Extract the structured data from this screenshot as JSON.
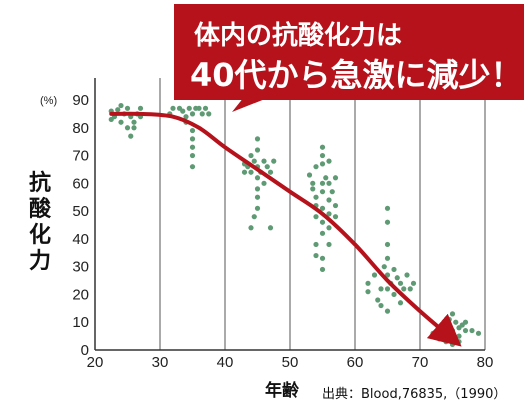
{
  "chart_data": {
    "type": "scatter",
    "title": "",
    "annotation": {
      "line1": "体内の抗酸化力は",
      "line2": "40代から急激に減少！"
    },
    "ylabel": "抗酸化力",
    "yunit": "(%)",
    "xlabel": "年齢",
    "source": "出典：Blood,76835,（1990）",
    "xlim": [
      20,
      80
    ],
    "ylim": [
      0,
      90
    ],
    "xticks": [
      20,
      30,
      40,
      50,
      60,
      70,
      80
    ],
    "yticks": [
      0,
      10,
      20,
      30,
      40,
      50,
      60,
      70,
      80,
      90
    ],
    "grid": "vertical",
    "colors": {
      "points": "#5e9a73",
      "trend": "#b5121b",
      "callout": "#b5121b",
      "axis": "#333333"
    },
    "trend_line": [
      {
        "x": 22.5,
        "y": 85
      },
      {
        "x": 27,
        "y": 85
      },
      {
        "x": 32,
        "y": 84
      },
      {
        "x": 36,
        "y": 80
      },
      {
        "x": 40,
        "y": 73
      },
      {
        "x": 45,
        "y": 65
      },
      {
        "x": 50,
        "y": 57
      },
      {
        "x": 55,
        "y": 49
      },
      {
        "x": 60,
        "y": 38
      },
      {
        "x": 65,
        "y": 25
      },
      {
        "x": 70,
        "y": 14
      },
      {
        "x": 75,
        "y": 4
      }
    ],
    "points": [
      {
        "x": 22.5,
        "y": 86
      },
      {
        "x": 23,
        "y": 84
      },
      {
        "x": 23.5,
        "y": 86.5
      },
      {
        "x": 24,
        "y": 82
      },
      {
        "x": 24.5,
        "y": 85
      },
      {
        "x": 25,
        "y": 80
      },
      {
        "x": 25,
        "y": 87
      },
      {
        "x": 25.5,
        "y": 84
      },
      {
        "x": 25.5,
        "y": 77
      },
      {
        "x": 26,
        "y": 82
      },
      {
        "x": 26.5,
        "y": 85
      },
      {
        "x": 27,
        "y": 84
      },
      {
        "x": 27,
        "y": 87
      },
      {
        "x": 26,
        "y": 80
      },
      {
        "x": 24,
        "y": 88
      },
      {
        "x": 22.5,
        "y": 83
      },
      {
        "x": 32,
        "y": 87
      },
      {
        "x": 33,
        "y": 87
      },
      {
        "x": 33.5,
        "y": 86
      },
      {
        "x": 34,
        "y": 84
      },
      {
        "x": 34,
        "y": 82
      },
      {
        "x": 34.5,
        "y": 87
      },
      {
        "x": 35,
        "y": 85
      },
      {
        "x": 35,
        "y": 79
      },
      {
        "x": 35,
        "y": 76
      },
      {
        "x": 35,
        "y": 73
      },
      {
        "x": 35,
        "y": 70
      },
      {
        "x": 35,
        "y": 66
      },
      {
        "x": 35.5,
        "y": 87
      },
      {
        "x": 36,
        "y": 87
      },
      {
        "x": 36.5,
        "y": 85
      },
      {
        "x": 37,
        "y": 87
      },
      {
        "x": 37.5,
        "y": 85
      },
      {
        "x": 31.5,
        "y": 85
      },
      {
        "x": 43,
        "y": 67
      },
      {
        "x": 43,
        "y": 64
      },
      {
        "x": 43.5,
        "y": 66
      },
      {
        "x": 44,
        "y": 70
      },
      {
        "x": 44,
        "y": 64
      },
      {
        "x": 44,
        "y": 44
      },
      {
        "x": 44.5,
        "y": 68
      },
      {
        "x": 45,
        "y": 76
      },
      {
        "x": 45,
        "y": 72
      },
      {
        "x": 45,
        "y": 66
      },
      {
        "x": 45,
        "y": 62
      },
      {
        "x": 45,
        "y": 58
      },
      {
        "x": 45,
        "y": 55
      },
      {
        "x": 45,
        "y": 51
      },
      {
        "x": 45.5,
        "y": 64
      },
      {
        "x": 46,
        "y": 68
      },
      {
        "x": 46,
        "y": 60
      },
      {
        "x": 46.5,
        "y": 66
      },
      {
        "x": 47,
        "y": 64
      },
      {
        "x": 47,
        "y": 44
      },
      {
        "x": 47.5,
        "y": 68
      },
      {
        "x": 44.5,
        "y": 48
      },
      {
        "x": 53,
        "y": 63
      },
      {
        "x": 53.5,
        "y": 58
      },
      {
        "x": 54,
        "y": 66
      },
      {
        "x": 54,
        "y": 55
      },
      {
        "x": 54,
        "y": 52
      },
      {
        "x": 54,
        "y": 48
      },
      {
        "x": 54,
        "y": 38
      },
      {
        "x": 54,
        "y": 34
      },
      {
        "x": 55,
        "y": 73
      },
      {
        "x": 55,
        "y": 70
      },
      {
        "x": 55,
        "y": 67
      },
      {
        "x": 55,
        "y": 60
      },
      {
        "x": 55,
        "y": 57
      },
      {
        "x": 55,
        "y": 51
      },
      {
        "x": 55,
        "y": 46
      },
      {
        "x": 55,
        "y": 42
      },
      {
        "x": 55,
        "y": 33
      },
      {
        "x": 55,
        "y": 29
      },
      {
        "x": 55.5,
        "y": 62
      },
      {
        "x": 56,
        "y": 68
      },
      {
        "x": 56,
        "y": 60
      },
      {
        "x": 56,
        "y": 54
      },
      {
        "x": 56,
        "y": 49
      },
      {
        "x": 56,
        "y": 44
      },
      {
        "x": 56,
        "y": 38
      },
      {
        "x": 56.5,
        "y": 57
      },
      {
        "x": 57,
        "y": 62
      },
      {
        "x": 57,
        "y": 52
      },
      {
        "x": 57,
        "y": 48
      },
      {
        "x": 53.5,
        "y": 60
      },
      {
        "x": 62,
        "y": 24
      },
      {
        "x": 62,
        "y": 21
      },
      {
        "x": 63,
        "y": 27
      },
      {
        "x": 63.5,
        "y": 18
      },
      {
        "x": 64,
        "y": 22
      },
      {
        "x": 64,
        "y": 16
      },
      {
        "x": 64.5,
        "y": 30
      },
      {
        "x": 65,
        "y": 51
      },
      {
        "x": 65,
        "y": 46
      },
      {
        "x": 65,
        "y": 38
      },
      {
        "x": 65,
        "y": 33
      },
      {
        "x": 65,
        "y": 27
      },
      {
        "x": 65,
        "y": 22
      },
      {
        "x": 65,
        "y": 14
      },
      {
        "x": 65.5,
        "y": 24
      },
      {
        "x": 66,
        "y": 29
      },
      {
        "x": 66,
        "y": 20
      },
      {
        "x": 66.5,
        "y": 26
      },
      {
        "x": 67,
        "y": 24
      },
      {
        "x": 67,
        "y": 17
      },
      {
        "x": 67.5,
        "y": 22
      },
      {
        "x": 68,
        "y": 27
      },
      {
        "x": 68.5,
        "y": 22
      },
      {
        "x": 69,
        "y": 24
      },
      {
        "x": 72,
        "y": 6
      },
      {
        "x": 73,
        "y": 8
      },
      {
        "x": 73.5,
        "y": 5
      },
      {
        "x": 74,
        "y": 9
      },
      {
        "x": 74,
        "y": 3
      },
      {
        "x": 74.5,
        "y": 11
      },
      {
        "x": 75,
        "y": 13
      },
      {
        "x": 75,
        "y": 7
      },
      {
        "x": 75,
        "y": 4
      },
      {
        "x": 75,
        "y": 2
      },
      {
        "x": 75.5,
        "y": 10
      },
      {
        "x": 76,
        "y": 8
      },
      {
        "x": 76,
        "y": 5
      },
      {
        "x": 76,
        "y": 3
      },
      {
        "x": 76.5,
        "y": 9
      },
      {
        "x": 77,
        "y": 7
      },
      {
        "x": 77,
        "y": 10
      },
      {
        "x": 78,
        "y": 7
      },
      {
        "x": 79,
        "y": 6
      },
      {
        "x": 73,
        "y": 4
      }
    ]
  }
}
